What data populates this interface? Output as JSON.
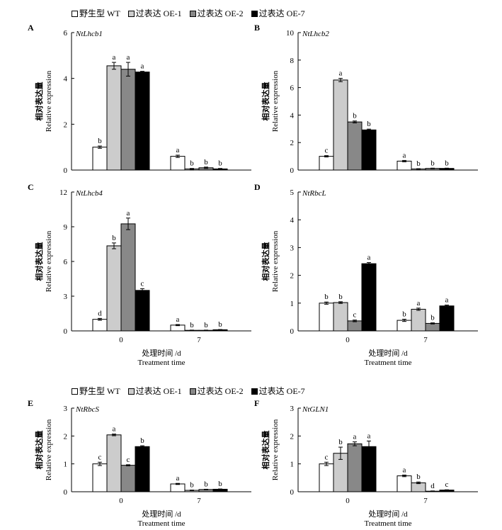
{
  "legend": {
    "items": [
      {
        "label": "野生型 WT",
        "color": "#ffffff"
      },
      {
        "label": "过表达 OE-1",
        "color": "#cccccc"
      },
      {
        "label": "过表达 OE-2",
        "color": "#888888"
      },
      {
        "label": "过表达 OE-7",
        "color": "#000000"
      }
    ]
  },
  "chart_data": [
    {
      "type": "bar",
      "panel": "A",
      "gene": "NtLhcb1",
      "ylabel_cn": "相对表达量",
      "ylabel_en": "Relative expression",
      "xlabel_cn": "",
      "xlabel_en": "",
      "categories": [
        "0",
        "7"
      ],
      "show_tick_labels": false,
      "ylim": [
        0,
        6
      ],
      "yticks": [
        0,
        2,
        4,
        6
      ],
      "series": [
        {
          "name": "野生型 WT",
          "values": [
            1.0,
            0.6
          ],
          "errors": [
            0.05,
            0.05
          ],
          "letters": [
            "b",
            "a"
          ]
        },
        {
          "name": "过表达 OE-1",
          "values": [
            4.55,
            0.05
          ],
          "errors": [
            0.15,
            0.02
          ],
          "letters": [
            "a",
            "b"
          ]
        },
        {
          "name": "过表达 OE-2",
          "values": [
            4.4,
            0.1
          ],
          "errors": [
            0.3,
            0.03
          ],
          "letters": [
            "a",
            "b"
          ]
        },
        {
          "name": "过表达 OE-7",
          "values": [
            4.28,
            0.05
          ],
          "errors": [
            0.03,
            0.02
          ],
          "letters": [
            "a",
            "b"
          ]
        }
      ]
    },
    {
      "type": "bar",
      "panel": "B",
      "gene": "NtLhcb2",
      "ylabel_cn": "相对表达量",
      "ylabel_en": "Relative expression",
      "xlabel_cn": "",
      "xlabel_en": "",
      "categories": [
        "0",
        "7"
      ],
      "show_tick_labels": false,
      "ylim": [
        0,
        10
      ],
      "yticks": [
        0,
        2,
        4,
        6,
        8,
        10
      ],
      "series": [
        {
          "name": "野生型 WT",
          "values": [
            1.0,
            0.65
          ],
          "errors": [
            0.05,
            0.05
          ],
          "letters": [
            "c",
            "a"
          ]
        },
        {
          "name": "过表达 OE-1",
          "values": [
            6.55,
            0.08
          ],
          "errors": [
            0.12,
            0.02
          ],
          "letters": [
            "a",
            "b"
          ]
        },
        {
          "name": "过表达 OE-2",
          "values": [
            3.5,
            0.12
          ],
          "errors": [
            0.07,
            0.02
          ],
          "letters": [
            "b",
            "b"
          ]
        },
        {
          "name": "过表达 OE-7",
          "values": [
            2.92,
            0.12
          ],
          "errors": [
            0.06,
            0.02
          ],
          "letters": [
            "b",
            "b"
          ]
        }
      ]
    },
    {
      "type": "bar",
      "panel": "C",
      "gene": "NtLhcb4",
      "ylabel_cn": "相对表达量",
      "ylabel_en": "Relative expression",
      "xlabel_cn": "处理时间 /d",
      "xlabel_en": "Treatment time",
      "categories": [
        "0",
        "7"
      ],
      "show_tick_labels": true,
      "ylim": [
        0,
        12
      ],
      "yticks": [
        0,
        3,
        6,
        9,
        12
      ],
      "series": [
        {
          "name": "野生型 WT",
          "values": [
            1.0,
            0.5
          ],
          "errors": [
            0.08,
            0.05
          ],
          "letters": [
            "d",
            "a"
          ]
        },
        {
          "name": "过表达 OE-1",
          "values": [
            7.35,
            0.05
          ],
          "errors": [
            0.25,
            0.02
          ],
          "letters": [
            "b",
            "b"
          ]
        },
        {
          "name": "过表达 OE-2",
          "values": [
            9.25,
            0.05
          ],
          "errors": [
            0.5,
            0.02
          ],
          "letters": [
            "a",
            "b"
          ]
        },
        {
          "name": "过表达 OE-7",
          "values": [
            3.5,
            0.1
          ],
          "errors": [
            0.15,
            0.02
          ],
          "letters": [
            "c",
            "b"
          ]
        }
      ]
    },
    {
      "type": "bar",
      "panel": "D",
      "gene": "NtRbcL",
      "ylabel_cn": "相对表达量",
      "ylabel_en": "Relative expression",
      "xlabel_cn": "处理时间 /d",
      "xlabel_en": "Treatment time",
      "categories": [
        "0",
        "7"
      ],
      "show_tick_labels": true,
      "ylim": [
        0,
        5
      ],
      "yticks": [
        0,
        1,
        2,
        3,
        4,
        5
      ],
      "series": [
        {
          "name": "野生型 WT",
          "values": [
            1.0,
            0.38
          ],
          "errors": [
            0.04,
            0.04
          ],
          "letters": [
            "b",
            "b"
          ]
        },
        {
          "name": "过表达 OE-1",
          "values": [
            1.02,
            0.78
          ],
          "errors": [
            0.03,
            0.04
          ],
          "letters": [
            "b",
            "a"
          ]
        },
        {
          "name": "过表达 OE-2",
          "values": [
            0.36,
            0.27
          ],
          "errors": [
            0.03,
            0.02
          ],
          "letters": [
            "c",
            "b"
          ]
        },
        {
          "name": "过表达 OE-7",
          "values": [
            2.42,
            0.9
          ],
          "errors": [
            0.04,
            0.03
          ],
          "letters": [
            "a",
            "a"
          ]
        }
      ]
    },
    {
      "type": "bar",
      "panel": "E",
      "gene": "NtRbcS",
      "ylabel_cn": "相对表达量",
      "ylabel_en": "Relative expression",
      "xlabel_cn": "处理时间 /d",
      "xlabel_en": "Treatment time",
      "categories": [
        "0",
        "7"
      ],
      "show_tick_labels": true,
      "ylim": [
        0,
        3
      ],
      "yticks": [
        0,
        1,
        2,
        3
      ],
      "series": [
        {
          "name": "野生型 WT",
          "values": [
            1.0,
            0.28
          ],
          "errors": [
            0.06,
            0.02
          ],
          "letters": [
            "c",
            "a"
          ]
        },
        {
          "name": "过表达 OE-1",
          "values": [
            2.04,
            0.05
          ],
          "errors": [
            0.03,
            0.01
          ],
          "letters": [
            "a",
            "b"
          ]
        },
        {
          "name": "过表达 OE-2",
          "values": [
            0.95,
            0.08
          ],
          "errors": [
            0.02,
            0.01
          ],
          "letters": [
            "c",
            "b"
          ]
        },
        {
          "name": "过表达 OE-7",
          "values": [
            1.62,
            0.09
          ],
          "errors": [
            0.03,
            0.01
          ],
          "letters": [
            "b",
            "b"
          ]
        }
      ]
    },
    {
      "type": "bar",
      "panel": "F",
      "gene": "NtGLN1",
      "ylabel_cn": "相对表达量",
      "ylabel_en": "Relative expression",
      "xlabel_cn": "处理时间 /d",
      "xlabel_en": "Treatment time",
      "categories": [
        "0",
        "7"
      ],
      "show_tick_labels": true,
      "ylim": [
        0,
        3
      ],
      "yticks": [
        0,
        1,
        2,
        3
      ],
      "series": [
        {
          "name": "野生型 WT",
          "values": [
            1.0,
            0.57
          ],
          "errors": [
            0.06,
            0.03
          ],
          "letters": [
            "c",
            "a"
          ]
        },
        {
          "name": "过表达 OE-1",
          "values": [
            1.38,
            0.32
          ],
          "errors": [
            0.22,
            0.03
          ],
          "letters": [
            "b",
            "b"
          ]
        },
        {
          "name": "过表达 OE-2",
          "values": [
            1.72,
            0.02
          ],
          "errors": [
            0.07,
            0.01
          ],
          "letters": [
            "a",
            "d"
          ]
        },
        {
          "name": "过表达 OE-7",
          "values": [
            1.62,
            0.06
          ],
          "errors": [
            0.2,
            0.01
          ],
          "letters": [
            "a",
            "c"
          ]
        }
      ]
    }
  ]
}
